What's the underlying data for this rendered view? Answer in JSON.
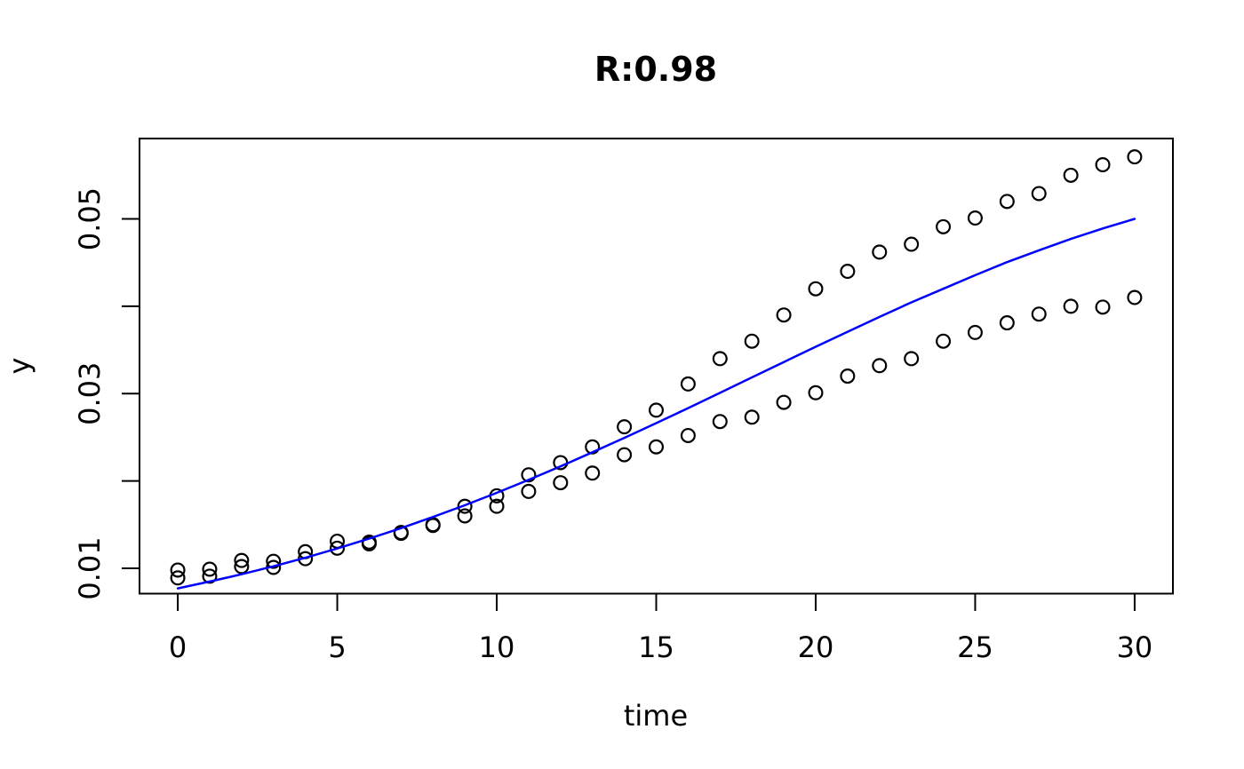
{
  "figure": {
    "background_color": "#ffffff",
    "axis_color": "#000000",
    "point_color": "#000000",
    "fit_line_color": "#0000ff"
  },
  "chart_data": {
    "type": "scatter",
    "title": "R:0.98",
    "xlabel": "time",
    "ylabel": "y",
    "grid": false,
    "legend_position": "none",
    "xlim": [
      -1.2,
      31.2
    ],
    "ylim": [
      0.0071,
      0.0592
    ],
    "x_ticks": [
      0,
      5,
      10,
      15,
      20,
      25,
      30
    ],
    "x_tick_labels": [
      "0",
      "5",
      "10",
      "15",
      "20",
      "25",
      "30"
    ],
    "y_ticks": [
      0.01,
      0.02,
      0.03,
      0.04,
      0.05
    ],
    "y_tick_labels": [
      "0.01",
      "",
      "0.03",
      "",
      "0.05"
    ],
    "x": [
      0,
      1,
      2,
      3,
      4,
      5,
      6,
      7,
      8,
      9,
      10,
      11,
      12,
      13,
      14,
      15,
      16,
      17,
      18,
      19,
      20,
      21,
      22,
      23,
      24,
      25,
      26,
      27,
      28,
      29,
      30
    ],
    "series": [
      {
        "name": "observed-upper",
        "style": "points",
        "marker": "open-circle",
        "color": "#000000",
        "values": [
          0.0098,
          0.0099,
          0.0109,
          0.0108,
          0.0119,
          0.0131,
          0.013,
          0.0141,
          0.015,
          0.0171,
          0.0183,
          0.0207,
          0.0221,
          0.0239,
          0.0262,
          0.0281,
          0.0311,
          0.034,
          0.036,
          0.039,
          0.042,
          0.044,
          0.0462,
          0.0471,
          0.0491,
          0.0501,
          0.052,
          0.0529,
          0.055,
          0.0562,
          0.0571
        ]
      },
      {
        "name": "observed-lower",
        "style": "points",
        "marker": "open-circle",
        "color": "#000000",
        "values": [
          0.0089,
          0.0091,
          0.0102,
          0.0101,
          0.0111,
          0.0123,
          0.0128,
          0.014,
          0.0149,
          0.016,
          0.0171,
          0.0188,
          0.0198,
          0.0209,
          0.023,
          0.0239,
          0.0252,
          0.0268,
          0.0273,
          0.029,
          0.0301,
          0.032,
          0.0332,
          0.034,
          0.036,
          0.037,
          0.0381,
          0.0391,
          0.04,
          0.0399,
          0.041
        ]
      },
      {
        "name": "fitted-curve",
        "style": "line",
        "color": "#0000ff",
        "values": [
          0.0077,
          0.00848,
          0.00932,
          0.01023,
          0.01121,
          0.01226,
          0.01339,
          0.01459,
          0.01587,
          0.01722,
          0.01864,
          0.02012,
          0.02167,
          0.02328,
          0.02493,
          0.02662,
          0.02834,
          0.03009,
          0.03185,
          0.03361,
          0.03536,
          0.03708,
          0.03878,
          0.04044,
          0.042,
          0.04355,
          0.04505,
          0.0464,
          0.0477,
          0.0489,
          0.05
        ]
      }
    ]
  }
}
